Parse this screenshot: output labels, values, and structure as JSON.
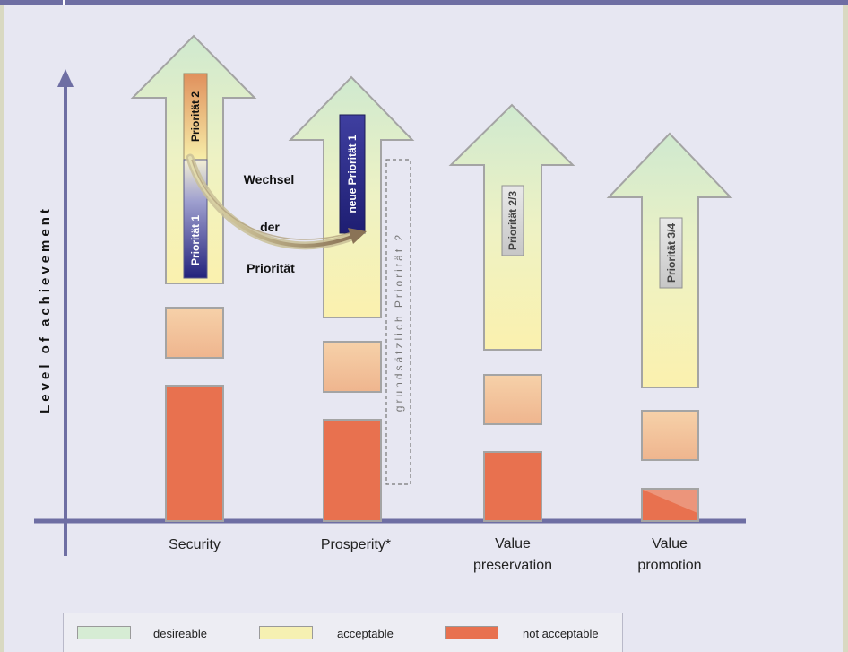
{
  "axis": {
    "y_label": "Level of achievement"
  },
  "categories": [
    {
      "label_lines": [
        "Security"
      ],
      "arrow_text": "Priorität 2",
      "box_text": "Priorität 1",
      "box_style": "dark"
    },
    {
      "label_lines": [
        "Prosperity*"
      ],
      "box_text": "neue Priorität 1",
      "box_style": "dark"
    },
    {
      "label_lines": [
        "Value",
        "preservation"
      ],
      "box_text": "Priorität 2/3",
      "box_style": "grey"
    },
    {
      "label_lines": [
        "Value",
        "promotion"
      ],
      "box_text": "Priorität 3/4",
      "box_style": "grey"
    }
  ],
  "annotation": {
    "lines": [
      "Wechsel",
      "der",
      "Priorität"
    ]
  },
  "basic_priority": "grundsätzlich Priorität 2",
  "legend": {
    "items": [
      {
        "label": "desireable",
        "color": "#d6ecd4"
      },
      {
        "label": "acceptable",
        "color": "#f6f0b2"
      },
      {
        "label": "not acceptable",
        "color": "#e8714f"
      }
    ]
  },
  "colors": {
    "axis": "#6e6ea3",
    "not_acceptable": "#e8714f",
    "acceptable_box": "#f2c39a",
    "priority_dark": "#2a2a86"
  }
}
